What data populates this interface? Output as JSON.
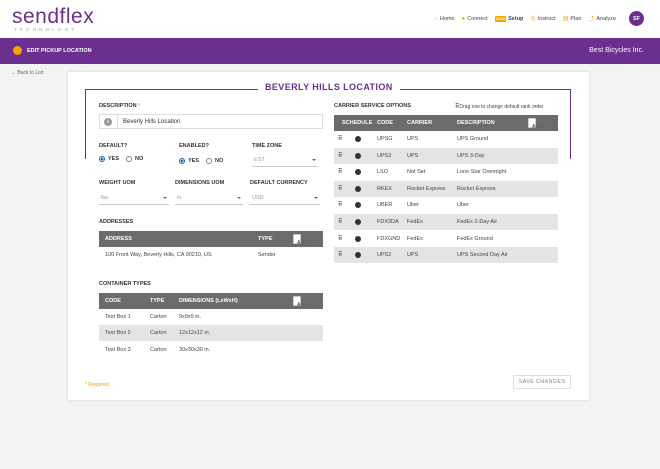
{
  "app": {
    "logo": "sendflex",
    "logo_sub": "TECHNOLOGY",
    "brand_color": "#6b2f8f",
    "accent_color": "#f0a500"
  },
  "nav": {
    "items": [
      {
        "label": "Home",
        "icon": "home-icon",
        "active": false
      },
      {
        "label": "Connect",
        "icon": "connect-icon",
        "active": false
      },
      {
        "label": "Setup",
        "icon": "setup-icon",
        "active": true
      },
      {
        "label": "Instruct",
        "icon": "instruct-icon",
        "active": false
      },
      {
        "label": "Plan",
        "icon": "plan-icon",
        "active": false
      },
      {
        "label": "Analyze",
        "icon": "analyze-icon",
        "active": false
      }
    ],
    "avatar": "SF"
  },
  "pagebar": {
    "title": "EDIT PICKUP LOCATION",
    "company": "Best Bicycles Inc."
  },
  "back_link": "← Back to List",
  "card_title": "BEVERLY HILLS LOCATION",
  "form": {
    "description_label": "DESCRIPTION",
    "required_mark": "*",
    "description_value": "Beverly Hills Location",
    "default_label": "DEFAULT?",
    "enabled_label": "ENABLED?",
    "yes": "YES",
    "no": "NO",
    "timezone_label": "TIME ZONE",
    "timezone_value": "EST",
    "weight_uom_label": "WEIGHT UOM",
    "weight_uom_value": "lbs.",
    "dimensions_uom_label": "DIMENSIONS UOM",
    "dimensions_uom_value": "in.",
    "currency_label": "DEFAULT CURRENCY",
    "currency_value": "USD"
  },
  "addresses": {
    "title": "ADDRESSES",
    "headers": [
      "ADDRESS",
      "TYPE"
    ],
    "add_label": "ADD",
    "rows": [
      {
        "address": "100 Front Way, Beverly Hills, CA 90210, US",
        "type": "Sender"
      }
    ]
  },
  "containers": {
    "title": "CONTAINER TYPES",
    "headers": [
      "CODE",
      "TYPE",
      "DIMENSIONS (LxWxH)"
    ],
    "add_label": "ADD",
    "rows": [
      {
        "code": "Test Box 1",
        "type": "Carton",
        "dims": "9x9x9 in."
      },
      {
        "code": "Test Box 2",
        "type": "Carton",
        "dims": "12x12x12 in."
      },
      {
        "code": "Test Box 3",
        "type": "Carton",
        "dims": "30x30x30 in."
      }
    ]
  },
  "carrier": {
    "title": "CARRIER SERVICE OPTIONS",
    "drag_hint": "Drag row to change default rank order",
    "headers": [
      "SCHEDULE",
      "CODE",
      "CARRIER",
      "DESCRIPTION"
    ],
    "add_label": "ADD",
    "rows": [
      {
        "code": "UPSG",
        "carrier": "UPS",
        "description": "UPS Ground"
      },
      {
        "code": "UPS3",
        "carrier": "UPS",
        "description": "UPS 3-Day"
      },
      {
        "code": "LSO",
        "carrier": "Not Set",
        "description": "Lone Star Overnight"
      },
      {
        "code": "RKEX",
        "carrier": "Rocket Express",
        "description": "Rocket Express"
      },
      {
        "code": "UBER",
        "carrier": "Uber",
        "description": "Uber"
      },
      {
        "code": "FDX2DA",
        "carrier": "FedEx",
        "description": "FedEx 2-Day Air"
      },
      {
        "code": "FDXGND",
        "carrier": "FedEx",
        "description": "FedEx Ground"
      },
      {
        "code": "UPS2",
        "carrier": "UPS",
        "description": "UPS Second Day Air"
      }
    ]
  },
  "footer": {
    "required_note": "* Required",
    "save_label": "SAVE CHANGES"
  }
}
